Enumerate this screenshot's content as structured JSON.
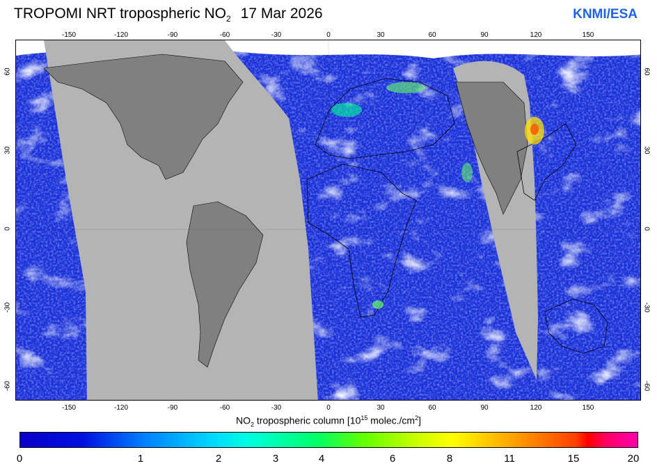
{
  "header": {
    "title_prefix": "TROPOMI  NRT tropospheric NO",
    "title_subscript": "2",
    "date": "17 Mar 2026",
    "brand": "KNMI/ESA"
  },
  "map": {
    "longitude_ticks": [
      "-150",
      "-120",
      "-90",
      "-60",
      "-30",
      "0",
      "30",
      "60",
      "90",
      "120",
      "150"
    ],
    "latitude_ticks_left": [
      "60",
      "30",
      "0",
      "-30",
      "-60"
    ],
    "latitude_ticks_right": [
      "60",
      "30",
      "0",
      "-30",
      "-60"
    ],
    "colors": {
      "no_data_swath": "#b4b4b4",
      "land_no_data": "#808080",
      "background_low": "#1a30d8",
      "cloud": "#f2f2ff"
    }
  },
  "colorbar": {
    "label_prefix": "NO",
    "label_sub": "2",
    "label_mid": " tropospheric column [10",
    "label_sup": "15",
    "label_mid2": " molec./cm",
    "label_sup2": "2",
    "label_end": "]",
    "ticks": [
      "0",
      "1",
      "2",
      "3",
      "4",
      "6",
      "8",
      "11",
      "15",
      "20"
    ]
  }
}
